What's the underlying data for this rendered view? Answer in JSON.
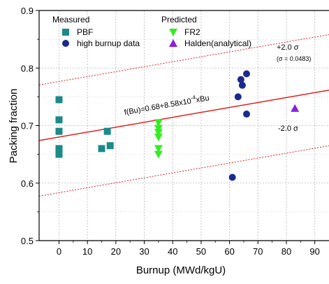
{
  "chart_data": {
    "type": "scatter",
    "xlabel": "Burnup (MWd/kgU)",
    "ylabel": "Packing fraction",
    "xlim": [
      -7,
      95
    ],
    "ylim": [
      0.5,
      0.9
    ],
    "x_ticks": [
      0,
      10,
      20,
      30,
      40,
      50,
      60,
      70,
      80,
      90
    ],
    "y_ticks": [
      0.5,
      0.6,
      0.7,
      0.8,
      0.9
    ],
    "x_tick_labels": [
      "0",
      "10",
      "20",
      "30",
      "40",
      "50",
      "60",
      "70",
      "80",
      "90"
    ],
    "y_tick_labels": [
      "0.5",
      "0.6",
      "0.7",
      "0.8",
      "0.9"
    ],
    "grid": true,
    "legend_position": "top-left",
    "legend_groups": [
      {
        "title": "Measured",
        "entries": [
          "PBF",
          "high burnup data"
        ]
      },
      {
        "title": "Predicted",
        "entries": [
          "FR2",
          "Halden(analytical)"
        ]
      }
    ],
    "series": [
      {
        "name": "PBF",
        "marker": "square",
        "color": "#1b8a8a",
        "points": [
          [
            0,
            0.745
          ],
          [
            0,
            0.71
          ],
          [
            0,
            0.69
          ],
          [
            0,
            0.66
          ],
          [
            0,
            0.655
          ],
          [
            0,
            0.65
          ],
          [
            15,
            0.66
          ],
          [
            17,
            0.69
          ],
          [
            18,
            0.665
          ]
        ]
      },
      {
        "name": "high burnup data",
        "marker": "circle",
        "color": "#1a2a8f",
        "points": [
          [
            61,
            0.61
          ],
          [
            63,
            0.75
          ],
          [
            64,
            0.78
          ],
          [
            64.5,
            0.77
          ],
          [
            66,
            0.79
          ],
          [
            66,
            0.72
          ]
        ]
      },
      {
        "name": "FR2",
        "marker": "triangle-down",
        "color": "#33ee22",
        "points": [
          [
            35,
            0.705
          ],
          [
            35,
            0.695
          ],
          [
            35,
            0.688
          ],
          [
            35,
            0.68
          ],
          [
            35,
            0.66
          ],
          [
            35,
            0.65
          ]
        ]
      },
      {
        "name": "Halden(analytical)",
        "marker": "triangle-up",
        "color": "#8b1fe0",
        "points": [
          [
            83,
            0.73
          ]
        ]
      }
    ],
    "fit_line": {
      "label": "f(Bu)=0.68+8.58x10",
      "label_sup": "-4",
      "label_tail": "xBu",
      "intercept": 0.68,
      "slope": 0.000858,
      "color": "#e02020"
    },
    "bounds": [
      {
        "label": "+2.0 σ",
        "offset": 0.0966,
        "color": "#e02020"
      },
      {
        "label": "-2.0 σ",
        "offset": -0.0966,
        "color": "#e02020"
      }
    ],
    "sigma_note": "(σ = 0.0483)"
  }
}
